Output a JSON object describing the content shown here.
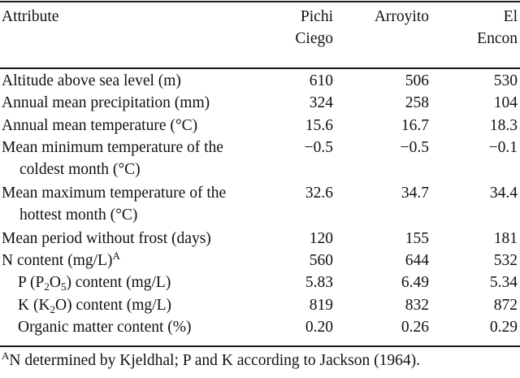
{
  "header": {
    "attribute": "Attribute",
    "columns": [
      {
        "line1": "Pichi",
        "line2": "Ciego"
      },
      {
        "line1": "Arroyito",
        "line2": ""
      },
      {
        "line1": "El",
        "line2": "Encon"
      }
    ]
  },
  "rows": [
    {
      "label": "Altitude above sea level (m)",
      "values": [
        "610",
        "506",
        "530"
      ]
    },
    {
      "label": "Annual mean precipitation (mm)",
      "values": [
        "324",
        "258",
        "104"
      ]
    },
    {
      "label": "Annual mean temperature (°C)",
      "values": [
        "15.6",
        "16.7",
        "18.3"
      ]
    },
    {
      "label": "Mean minimum temperature of the",
      "label2": "coldest month (°C)",
      "values": [
        "−0.5",
        "−0.5",
        "−0.1"
      ]
    },
    {
      "label": "Mean maximum temperature of the",
      "label2": "hottest month (°C)",
      "values": [
        "32.6",
        "34.7",
        "34.4"
      ]
    },
    {
      "label": "Mean period without frost (days)",
      "values": [
        "120",
        "155",
        "181"
      ]
    },
    {
      "label": "N content (mg/L)",
      "sup": "A",
      "values": [
        "560",
        "644",
        "532"
      ]
    },
    {
      "label_pre": "P (P",
      "sub1": "2",
      "label_mid": "O",
      "sub2": "5",
      "label_post": ") content (mg/L)",
      "values": [
        "5.83",
        "6.49",
        "5.34"
      ]
    },
    {
      "label_pre": "K (K",
      "sub1": "2",
      "label_post": "O) content (mg/L)",
      "values": [
        "819",
        "832",
        "872"
      ]
    },
    {
      "label": "Organic matter content (%)",
      "values": [
        "0.20",
        "0.26",
        "0.29"
      ]
    }
  ],
  "footnote": {
    "marker": "A",
    "text": "N determined by Kjeldhal; P and K according to Jackson (1964)."
  }
}
